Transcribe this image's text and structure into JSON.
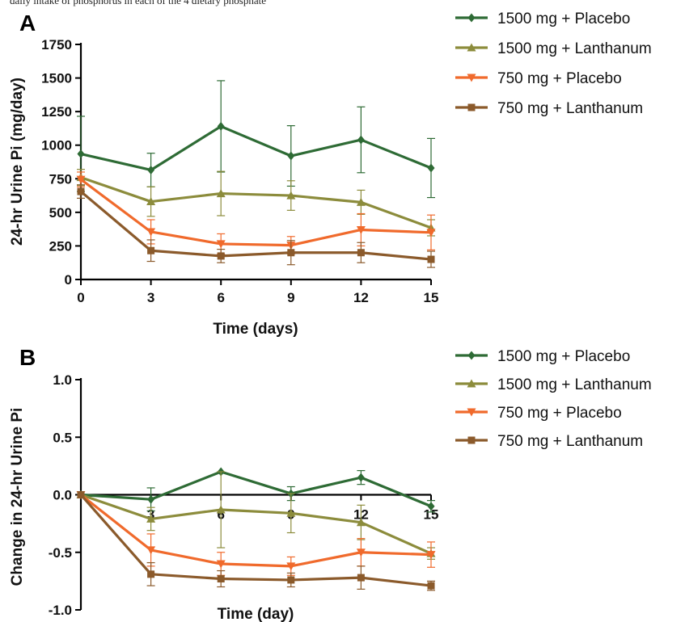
{
  "caption_fragment": "daily intake of phosphorus in each of the 4 dietary phosphate",
  "chart_data": [
    {
      "panel": "A",
      "type": "line",
      "xlabel": "Time (days)",
      "ylabel": "24-hr Urine Pi (mg/day)",
      "x": [
        0,
        3,
        6,
        9,
        12,
        15
      ],
      "xlim": [
        0,
        15
      ],
      "ylim": [
        0,
        1750
      ],
      "xticks": [
        "0",
        "3",
        "6",
        "9",
        "12",
        "15"
      ],
      "yticks": [
        "0",
        "250",
        "500",
        "750",
        "1000",
        "1250",
        "1500",
        "1750"
      ],
      "grid": false,
      "legend_position": "top-right",
      "series": [
        {
          "name": "1500 mg + Placebo",
          "color": "#2e6b35",
          "marker": "diamond",
          "values": [
            935,
            815,
            1140,
            920,
            1040,
            830
          ],
          "errors": [
            280,
            125,
            340,
            225,
            245,
            220
          ]
        },
        {
          "name": "1500 mg + Lanthanum",
          "color": "#8c8c3c",
          "marker": "triangle-up",
          "values": [
            760,
            580,
            640,
            625,
            575,
            385
          ],
          "errors": [
            60,
            110,
            165,
            110,
            90,
            60
          ]
        },
        {
          "name": "750 mg + Placebo",
          "color": "#f06a2c",
          "marker": "triangle-down",
          "values": [
            745,
            355,
            265,
            255,
            370,
            350
          ],
          "errors": [
            55,
            90,
            75,
            65,
            120,
            130
          ]
        },
        {
          "name": "750 mg + Lanthanum",
          "color": "#8b5a2b",
          "marker": "square",
          "values": [
            655,
            215,
            175,
            200,
            200,
            150
          ],
          "errors": [
            50,
            80,
            50,
            90,
            75,
            60
          ]
        }
      ]
    },
    {
      "panel": "B",
      "type": "line",
      "xlabel": "Time (day)",
      "ylabel": "Change in 24-hr Urine Pi",
      "x": [
        0,
        3,
        6,
        9,
        12,
        15
      ],
      "xlim": [
        0,
        15
      ],
      "ylim": [
        -1.0,
        1.0
      ],
      "xticks": [
        "3",
        "6",
        "9",
        "12",
        "15"
      ],
      "yticks": [
        "-1.0",
        "-0.5",
        "0.0",
        "0.5",
        "1.0"
      ],
      "grid": false,
      "legend_position": "top-right",
      "series": [
        {
          "name": "1500 mg + Placebo",
          "color": "#2e6b35",
          "marker": "diamond",
          "values": [
            0.0,
            -0.04,
            0.2,
            0.01,
            0.15,
            -0.1
          ],
          "errors": [
            0,
            0.1,
            0.0,
            0.06,
            0.06,
            0.05
          ]
        },
        {
          "name": "1500 mg + Lanthanum",
          "color": "#8c8c3c",
          "marker": "triangle-up",
          "values": [
            0.0,
            -0.21,
            -0.13,
            -0.16,
            -0.24,
            -0.51
          ],
          "errors": [
            0,
            0.1,
            0.33,
            0.17,
            0.15,
            0.05
          ]
        },
        {
          "name": "750 mg + Placebo",
          "color": "#f06a2c",
          "marker": "triangle-down",
          "values": [
            0.0,
            -0.48,
            -0.6,
            -0.62,
            -0.5,
            -0.52
          ],
          "errors": [
            0,
            0.14,
            0.1,
            0.08,
            0.12,
            0.11
          ]
        },
        {
          "name": "750 mg + Lanthanum",
          "color": "#8b5a2b",
          "marker": "square",
          "values": [
            0.0,
            -0.69,
            -0.73,
            -0.74,
            -0.72,
            -0.79
          ],
          "errors": [
            0,
            0.1,
            0.07,
            0.06,
            0.1,
            0.04
          ]
        }
      ]
    }
  ]
}
